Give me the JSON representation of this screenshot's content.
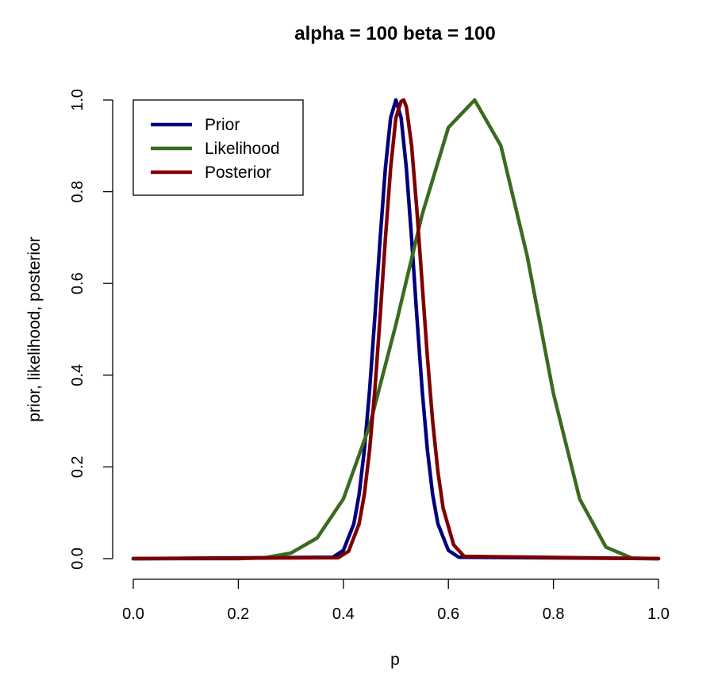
{
  "chart_data": {
    "type": "line",
    "title": "alpha =  100 beta =  100",
    "xlabel": "p",
    "ylabel": "prior, likelihood, posterior",
    "xlim": [
      0,
      1
    ],
    "ylim": [
      0,
      1
    ],
    "x_ticks": [
      "0.0",
      "0.2",
      "0.4",
      "0.6",
      "0.8",
      "1.0"
    ],
    "y_ticks": [
      "0.0",
      "0.2",
      "0.4",
      "0.6",
      "0.8",
      "1.0"
    ],
    "grid": false,
    "legend_position": "top-left",
    "series": [
      {
        "name": "Prior",
        "color": "#00007f",
        "x": [
          0.0,
          0.38,
          0.4,
          0.42,
          0.43,
          0.44,
          0.45,
          0.46,
          0.47,
          0.48,
          0.49,
          0.5,
          0.51,
          0.52,
          0.53,
          0.54,
          0.55,
          0.56,
          0.57,
          0.58,
          0.6,
          0.62,
          1.0
        ],
        "values": [
          0.0,
          0.003,
          0.018,
          0.076,
          0.14,
          0.237,
          0.368,
          0.527,
          0.697,
          0.851,
          0.961,
          1.0,
          0.961,
          0.851,
          0.697,
          0.527,
          0.368,
          0.237,
          0.14,
          0.076,
          0.018,
          0.003,
          0.0
        ]
      },
      {
        "name": "Likelihood",
        "color": "#3a6b1f",
        "x": [
          0.0,
          0.2,
          0.25,
          0.3,
          0.35,
          0.4,
          0.45,
          0.5,
          0.55,
          0.6,
          0.65,
          0.7,
          0.75,
          0.8,
          0.85,
          0.9,
          0.95,
          1.0
        ],
        "values": [
          0.0,
          0.0,
          0.002,
          0.012,
          0.045,
          0.13,
          0.29,
          0.51,
          0.75,
          0.94,
          1.0,
          0.9,
          0.66,
          0.36,
          0.13,
          0.025,
          0.001,
          0.0
        ]
      },
      {
        "name": "Posterior",
        "color": "#7f0000",
        "x": [
          0.0,
          0.39,
          0.41,
          0.43,
          0.44,
          0.45,
          0.46,
          0.47,
          0.48,
          0.49,
          0.5,
          0.51,
          0.515,
          0.52,
          0.53,
          0.54,
          0.55,
          0.56,
          0.57,
          0.58,
          0.59,
          0.61,
          0.63,
          1.0
        ],
        "values": [
          0.0,
          0.002,
          0.016,
          0.076,
          0.14,
          0.237,
          0.368,
          0.527,
          0.697,
          0.851,
          0.961,
          0.997,
          1.0,
          0.985,
          0.9,
          0.76,
          0.6,
          0.44,
          0.3,
          0.19,
          0.11,
          0.03,
          0.005,
          0.0
        ]
      }
    ]
  }
}
